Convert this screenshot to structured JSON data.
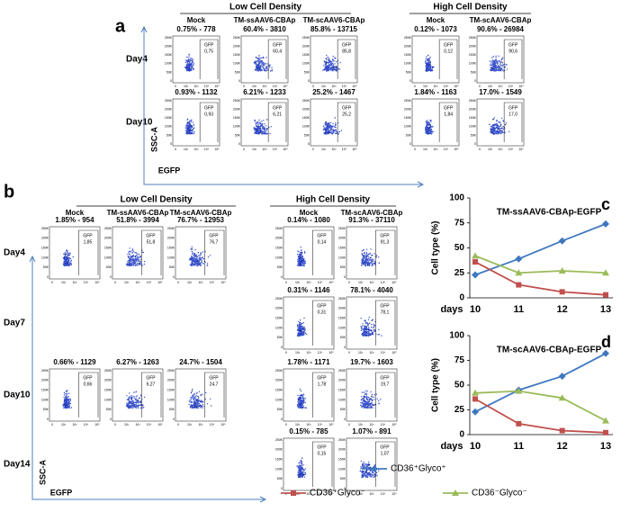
{
  "flow_axes": {
    "yticks": [
      "250K",
      "200K",
      "150K",
      "100K",
      "50K",
      "0"
    ],
    "xticks": [
      "0",
      "10²",
      "10³",
      "10⁴",
      "10⁵"
    ],
    "gate": "GFP"
  },
  "panel_a": {
    "label": "a",
    "groups": [
      "Low Cell Density",
      "High Cell Density"
    ],
    "columns": [
      "Mock",
      "TM-ssAAV6-CBAp",
      "TM-scAAV6-CBAp",
      "Mock",
      "TM-scAAV6-CBAp"
    ],
    "rows": [
      "Day4",
      "Day10"
    ],
    "ylabel": "SSC-A",
    "xlabel": "EGFP",
    "plots": [
      [
        {
          "stats": "0.75% - 778",
          "gfp": "0,75"
        },
        {
          "stats": "60.4% - 3810",
          "gfp": "60,4"
        },
        {
          "stats": "85.8% - 13715",
          "gfp": "85,8"
        },
        {
          "stats": "0.12% - 1073",
          "gfp": "0,12"
        },
        {
          "stats": "90.6% - 26984",
          "gfp": "90,6"
        }
      ],
      [
        {
          "stats": "0.93% - 1132",
          "gfp": "0,93"
        },
        {
          "stats": "6.21% - 1233",
          "gfp": "6,21"
        },
        {
          "stats": "25.2% - 1467",
          "gfp": "25,2"
        },
        {
          "stats": "1.84% - 1163",
          "gfp": "1,84"
        },
        {
          "stats": "17.0% - 1549",
          "gfp": "17,0"
        }
      ]
    ]
  },
  "panel_b": {
    "label": "b",
    "groups": [
      "Low Cell Density",
      "High Cell Density"
    ],
    "columns": [
      "Mock",
      "TM-ssAAV6-CBAp",
      "TM-scAAV6-CBAp",
      "Mock",
      "TM-scAAV6-CBAp"
    ],
    "rows": [
      "Day4",
      "Day7",
      "Day10",
      "Day14"
    ],
    "ylabel": "SSC-A",
    "xlabel": "EGFP",
    "plots": [
      [
        {
          "stats": "1.85% - 954",
          "gfp": "1,85"
        },
        {
          "stats": "51.8% - 3994",
          "gfp": "51,8"
        },
        {
          "stats": "76.7% - 12953",
          "gfp": "76,7"
        },
        {
          "stats": "0.14% - 1080",
          "gfp": "0,14"
        },
        {
          "stats": "91.3% - 37110",
          "gfp": "91,3"
        }
      ],
      [
        null,
        null,
        null,
        {
          "stats": "0.31% - 1146",
          "gfp": "0,31"
        },
        {
          "stats": "78.1% - 4040",
          "gfp": "78,1"
        }
      ],
      [
        {
          "stats": "0.66% - 1129",
          "gfp": "0,66"
        },
        {
          "stats": "6.27% - 1263",
          "gfp": "6,27"
        },
        {
          "stats": "24.7% - 1504",
          "gfp": "24,7"
        },
        {
          "stats": "1.78% - 1171",
          "gfp": "1,78"
        },
        {
          "stats": "19.7% - 1603",
          "gfp": "19,7"
        }
      ],
      [
        null,
        null,
        null,
        {
          "stats": "0.15% - 785",
          "gfp": "0,15"
        },
        {
          "stats": "1.07% - 891",
          "gfp": "1,07"
        }
      ]
    ]
  },
  "chart_data": [
    {
      "type": "line",
      "label": "c",
      "title": "TM-ssAAV6-CBAp-EGFP",
      "xlabel": "days",
      "ylabel": "Cell type (%)",
      "categories": [
        "10",
        "11",
        "12",
        "13"
      ],
      "ylim": [
        0,
        100
      ],
      "yticks": [
        0,
        25,
        50,
        75,
        100
      ],
      "series": [
        {
          "name": "CD36⁺Glyco⁺",
          "color": "#3f78c0",
          "marker": "diamond",
          "values": [
            23,
            39,
            57,
            74
          ]
        },
        {
          "name": "CD36⁺Glyco⁻",
          "color": "#c0504d",
          "marker": "square",
          "values": [
            36,
            13,
            6,
            3
          ]
        },
        {
          "name": "CD36⁻Glyco⁻",
          "color": "#9bbb59",
          "marker": "triangle",
          "values": [
            42,
            25,
            27,
            25
          ]
        }
      ]
    },
    {
      "type": "line",
      "label": "d",
      "title": "TM-scAAV6-CBAp-EGFP",
      "xlabel": "days",
      "ylabel": "Cell type (%)",
      "categories": [
        "10",
        "11",
        "12",
        "13"
      ],
      "ylim": [
        0,
        100
      ],
      "yticks": [
        0,
        25,
        50,
        75,
        100
      ],
      "series": [
        {
          "color": "#3f78c0",
          "marker": "diamond",
          "values": [
            23,
            45,
            59,
            82
          ]
        },
        {
          "color": "#c0504d",
          "marker": "square",
          "values": [
            36,
            11,
            4,
            2
          ]
        },
        {
          "color": "#9bbb59",
          "marker": "triangle",
          "values": [
            42,
            44,
            37,
            14
          ]
        }
      ]
    }
  ]
}
